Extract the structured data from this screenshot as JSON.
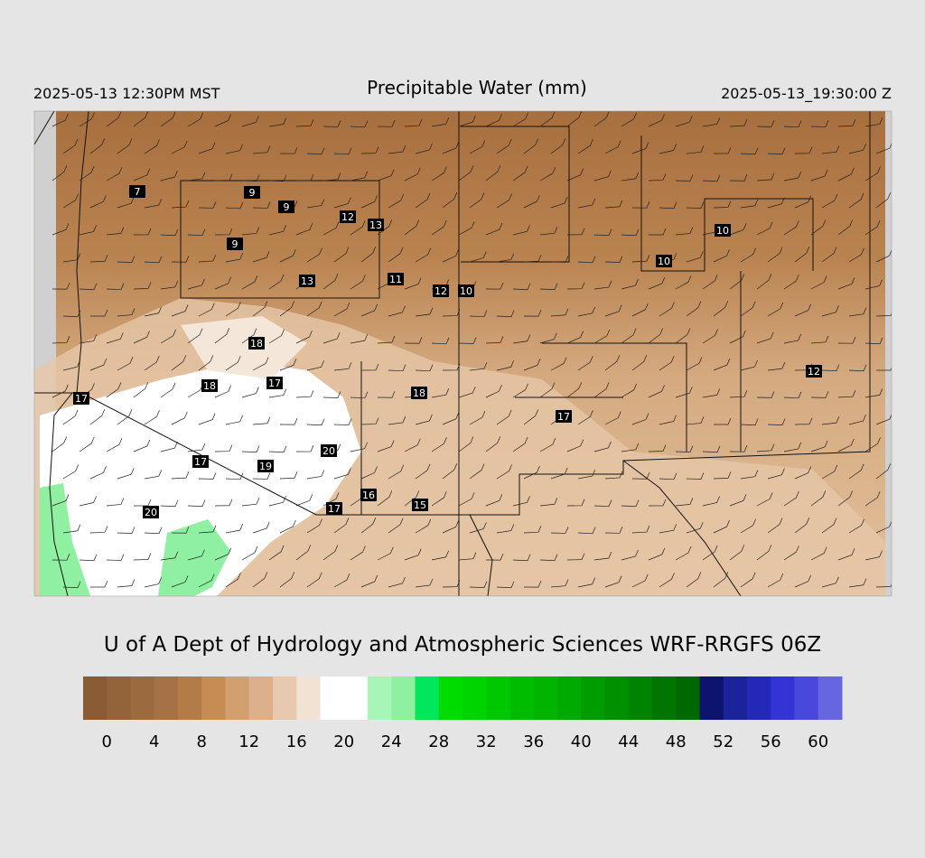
{
  "header": {
    "local_time": "2025-05-13 12:30PM MST",
    "title": "Precipitable Water (mm)",
    "valid_time": "2025-05-13_19:30:00 Z"
  },
  "map": {
    "station_values": [
      7,
      9,
      9,
      12,
      13,
      9,
      13,
      11,
      12,
      10,
      10,
      10,
      18,
      18,
      17,
      18,
      12,
      17,
      17,
      20,
      17,
      19,
      16,
      15,
      17,
      20
    ]
  },
  "footer": {
    "credit": "U of A Dept of Hydrology and Atmospheric Sciences WRF-RRGFS 06Z"
  },
  "colorbar": {
    "range": [
      -2,
      62
    ],
    "colors": [
      "#8a5c35",
      "#93633a",
      "#9b6a3e",
      "#a67243",
      "#b37b48",
      "#c78c52",
      "#d2a06f",
      "#dbb08a",
      "#e6c9ae",
      "#f1e2d4",
      "#ffffff",
      "#ffffff",
      "#a8f5b8",
      "#8ef0a0",
      "#00e85a",
      "#00dc00",
      "#00d400",
      "#00c800",
      "#00bc00",
      "#00b400",
      "#00aa00",
      "#009c00",
      "#009000",
      "#008400",
      "#007600",
      "#006800",
      "#0c1470",
      "#1a239a",
      "#2428b8",
      "#3333d6",
      "#4848dc",
      "#6666e0"
    ],
    "ticks": [
      0,
      4,
      8,
      12,
      16,
      20,
      24,
      28,
      32,
      36,
      40,
      44,
      48,
      52,
      56,
      60
    ]
  }
}
